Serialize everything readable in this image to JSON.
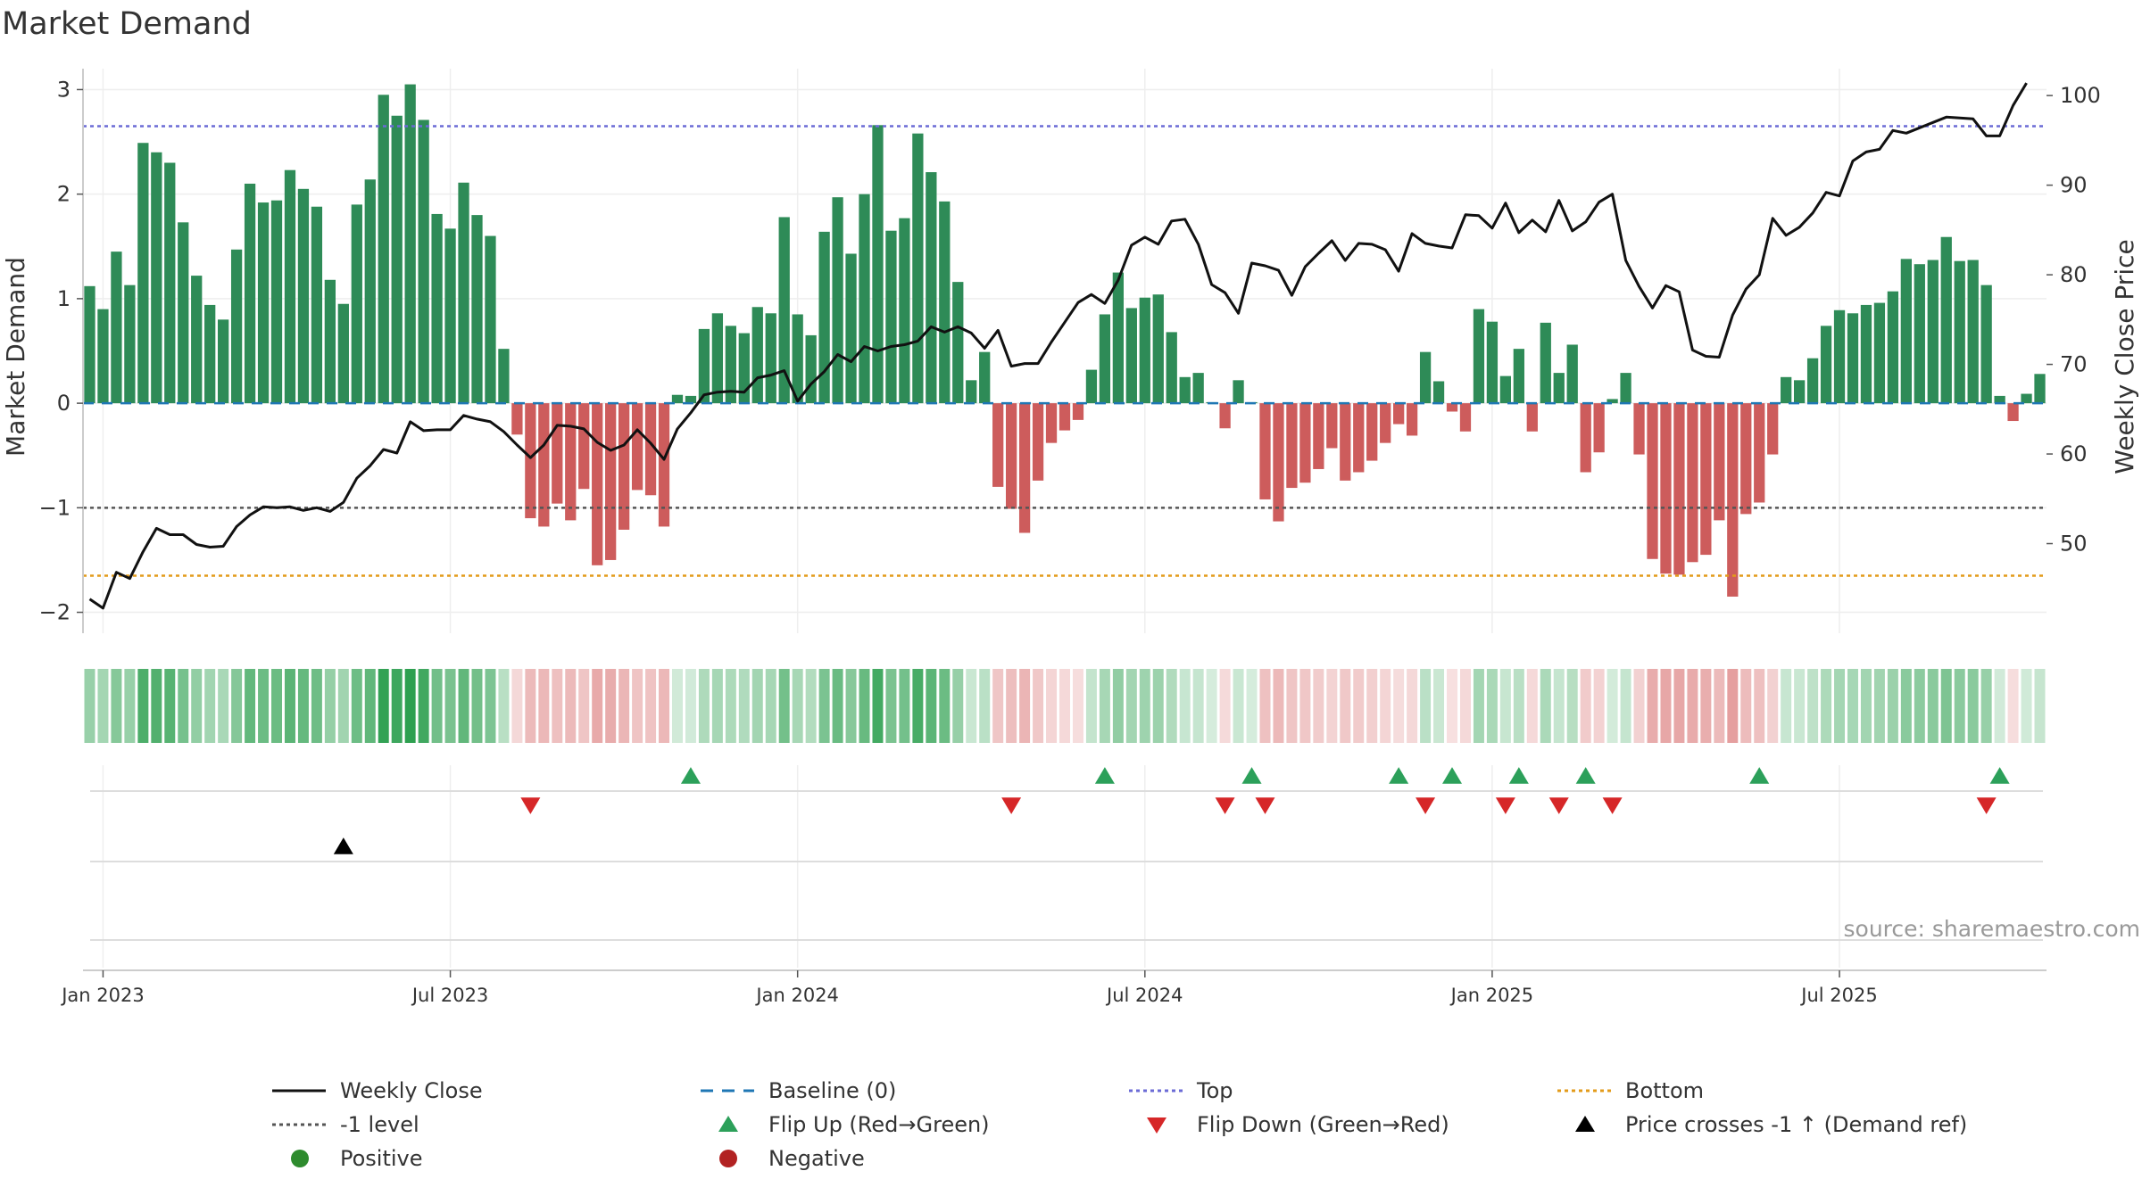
{
  "chart_data": {
    "type": "bar",
    "title": "Market Demand",
    "ylabel": "Market Demand",
    "y2label": "Weekly Close Price",
    "source": "source: sharemaestro.com",
    "ylim": [
      -2.2,
      3.2
    ],
    "y2lim": [
      40,
      103
    ],
    "yticks": [
      3,
      2,
      1,
      0,
      -1,
      -2
    ],
    "ytick_labels": [
      "3",
      "2",
      "1",
      "0",
      "−1",
      "−2"
    ],
    "y2ticks": [
      100,
      90,
      80,
      70,
      60,
      50
    ],
    "y2tick_labels": [
      "100",
      "90",
      "80",
      "70",
      "60",
      "50"
    ],
    "xticks": [
      {
        "label": "Jan 2023",
        "week": 1.5
      },
      {
        "label": "Jul 2023",
        "week": 27.5
      },
      {
        "label": "Jan 2024",
        "week": 53.5
      },
      {
        "label": "Jul 2024",
        "week": 79.5
      },
      {
        "label": "Jan 2025",
        "week": 105.5
      },
      {
        "label": "Jul 2025",
        "week": 131.5
      }
    ],
    "reference_lines": {
      "baseline": 0,
      "top": 2.65,
      "minus_one": -1,
      "bottom": -1.65
    },
    "demand": [
      1.12,
      0.9,
      1.45,
      1.13,
      2.49,
      2.4,
      2.3,
      1.73,
      1.22,
      0.94,
      0.8,
      1.47,
      2.1,
      1.92,
      1.94,
      2.23,
      2.05,
      1.88,
      1.18,
      0.95,
      1.9,
      2.14,
      2.95,
      2.75,
      3.05,
      2.71,
      1.81,
      1.67,
      2.11,
      1.8,
      1.6,
      0.52,
      -0.3,
      -1.1,
      -1.18,
      -0.96,
      -1.12,
      -0.82,
      -1.55,
      -1.5,
      -1.21,
      -0.83,
      -0.88,
      -1.18,
      0.08,
      0.07,
      0.71,
      0.86,
      0.74,
      0.67,
      0.92,
      0.86,
      1.78,
      0.85,
      0.65,
      1.64,
      1.97,
      1.43,
      2.0,
      2.66,
      1.65,
      1.77,
      2.58,
      2.21,
      1.93,
      1.16,
      0.22,
      0.49,
      -0.8,
      -1.01,
      -1.24,
      -0.74,
      -0.38,
      -0.26,
      -0.16,
      0.32,
      0.85,
      1.25,
      0.91,
      1.01,
      1.04,
      0.68,
      0.25,
      0.29,
      0.01,
      -0.24,
      0.22,
      0.01,
      -0.92,
      -1.13,
      -0.81,
      -0.76,
      -0.63,
      -0.43,
      -0.74,
      -0.66,
      -0.55,
      -0.38,
      -0.2,
      -0.31,
      0.49,
      0.21,
      -0.08,
      -0.27,
      0.9,
      0.78,
      0.26,
      0.52,
      -0.27,
      0.77,
      0.29,
      0.56,
      -0.66,
      -0.47,
      0.04,
      0.29,
      -0.49,
      -1.49,
      -1.63,
      -1.64,
      -1.52,
      -1.45,
      -1.12,
      -1.85,
      -1.06,
      -0.95,
      -0.49,
      0.25,
      0.22,
      0.43,
      0.74,
      0.89,
      0.86,
      0.94,
      0.96,
      1.07,
      1.38,
      1.33,
      1.37,
      1.59,
      1.36,
      1.37,
      1.13,
      0.07,
      -0.17,
      0.09,
      0.28
    ],
    "price": [
      43.8,
      42.8,
      46.8,
      46.1,
      49.1,
      51.7,
      51.0,
      51.0,
      49.9,
      49.6,
      49.7,
      51.9,
      53.2,
      54.1,
      54.0,
      54.1,
      53.7,
      54.0,
      53.6,
      54.6,
      57.3,
      58.7,
      60.5,
      60.1,
      63.6,
      62.6,
      62.7,
      62.7,
      64.3,
      63.9,
      63.6,
      62.5,
      61.0,
      59.6,
      61.0,
      63.2,
      63.1,
      62.8,
      61.3,
      60.4,
      61.0,
      62.7,
      61.2,
      59.4,
      62.8,
      64.6,
      66.6,
      66.9,
      67.0,
      66.9,
      68.5,
      68.8,
      69.3,
      65.9,
      67.8,
      69.2,
      71.1,
      70.3,
      72.0,
      71.5,
      72.0,
      72.2,
      72.6,
      74.2,
      73.6,
      74.2,
      73.5,
      71.8,
      73.8,
      69.8,
      70.1,
      70.1,
      72.5,
      74.7,
      76.9,
      77.8,
      76.8,
      79.4,
      83.3,
      84.2,
      83.4,
      86.0,
      86.2,
      83.4,
      78.9,
      78.0,
      75.7,
      81.3,
      81.0,
      80.5,
      77.7,
      80.9,
      82.4,
      83.8,
      81.6,
      83.5,
      83.4,
      82.8,
      80.4,
      84.6,
      83.5,
      83.2,
      83.0,
      86.7,
      86.6,
      85.2,
      88.0,
      84.7,
      86.1,
      84.8,
      88.3,
      84.9,
      85.9,
      88.1,
      89.0,
      81.6,
      78.7,
      76.3,
      78.8,
      78.1,
      71.6,
      70.9,
      70.8,
      75.5,
      78.4,
      80.0,
      86.3,
      84.4,
      85.3,
      86.9,
      89.2,
      88.8,
      92.7,
      93.7,
      94.0,
      96.1,
      95.8,
      96.4,
      97.0,
      97.6,
      97.5,
      97.4,
      95.5,
      95.5,
      98.9,
      101.4
    ],
    "heatmap_strip": "one colored cell per week: green shades for positive demand, red shades for negative demand, intensity proportional to magnitude",
    "signals": {
      "flip_up_weeks": [
        45,
        76,
        87,
        98,
        102,
        107,
        112,
        125,
        143
      ],
      "flip_down_weeks": [
        33,
        69,
        85,
        88,
        100,
        106,
        110,
        114,
        142
      ],
      "price_cross_weeks": [
        19
      ]
    },
    "legend": [
      {
        "label": "Weekly Close",
        "symbol": "line",
        "color": "#111111"
      },
      {
        "label": "Baseline (0)",
        "symbol": "dash",
        "color": "#1f77b4"
      },
      {
        "label": "Top",
        "symbol": "dot",
        "color": "#6b6bd6"
      },
      {
        "label": "Bottom",
        "symbol": "dot",
        "color": "#e39b1a"
      },
      {
        "label": "-1 level",
        "symbol": "dot",
        "color": "#555555"
      },
      {
        "label": "Flip Up (Red→Green)",
        "symbol": "tri-up",
        "color": "#2ca05a"
      },
      {
        "label": "Flip Down (Green→Red)",
        "symbol": "tri-down",
        "color": "#d62728"
      },
      {
        "label": "Price crosses -1 ↑ (Demand ref)",
        "symbol": "tri-up",
        "color": "#000000"
      },
      {
        "label": "Positive",
        "symbol": "circle",
        "color": "#2e8b2e"
      },
      {
        "label": "Negative",
        "symbol": "circle",
        "color": "#b22222"
      }
    ],
    "colors": {
      "positive_bar": "#2e8b57",
      "negative_bar": "#cd5c5c",
      "price_line": "#111111",
      "grid": "#e8e8e8",
      "axis": "#cccccc"
    }
  }
}
